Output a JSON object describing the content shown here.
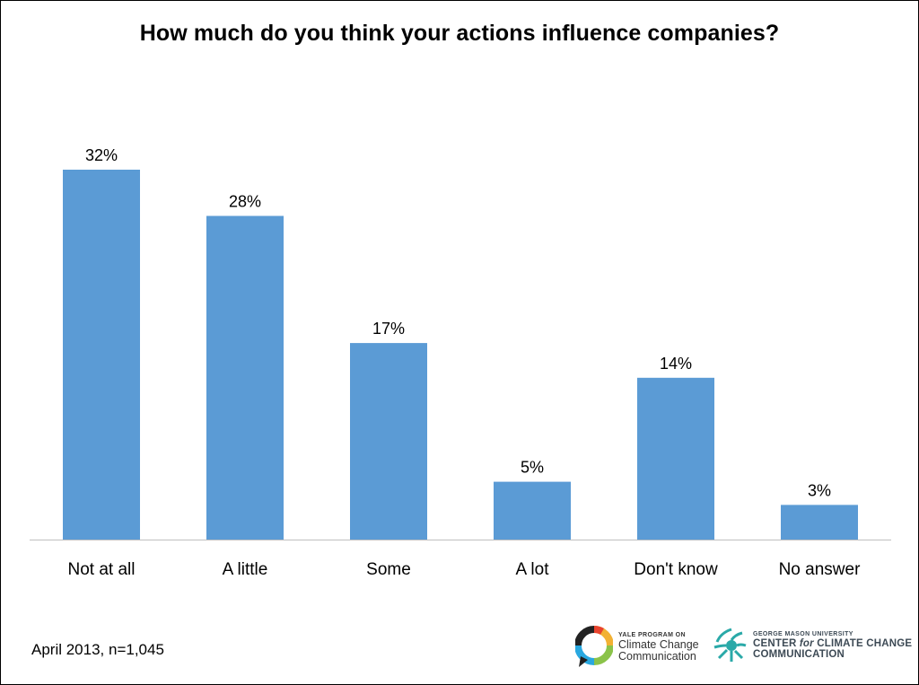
{
  "chart_data": {
    "type": "bar",
    "title": "How much do you think your actions influence companies?",
    "categories": [
      "Not at all",
      "A little",
      "Some",
      "A lot",
      "Don't know",
      "No answer"
    ],
    "values": [
      32,
      28,
      17,
      5,
      14,
      3
    ],
    "value_labels": [
      "32%",
      "28%",
      "17%",
      "5%",
      "14%",
      "3%"
    ],
    "unit": "%",
    "ylim": [
      0,
      35
    ],
    "grid": false,
    "legend": "none",
    "bar_color": "#5b9bd5",
    "axis_color": "#bfbfbf"
  },
  "footnote": "April 2013, n=1,045",
  "logos": {
    "yale": {
      "line1": "YALE PROGRAM ON",
      "line2": "Climate Change",
      "line3": "Communication"
    },
    "gmu": {
      "line1": "GEORGE MASON UNIVERSITY",
      "line2_a": "CENTER ",
      "line2_b": "for",
      "line2_c": " CLIMATE CHANGE",
      "line3": "COMMUNICATION"
    }
  }
}
